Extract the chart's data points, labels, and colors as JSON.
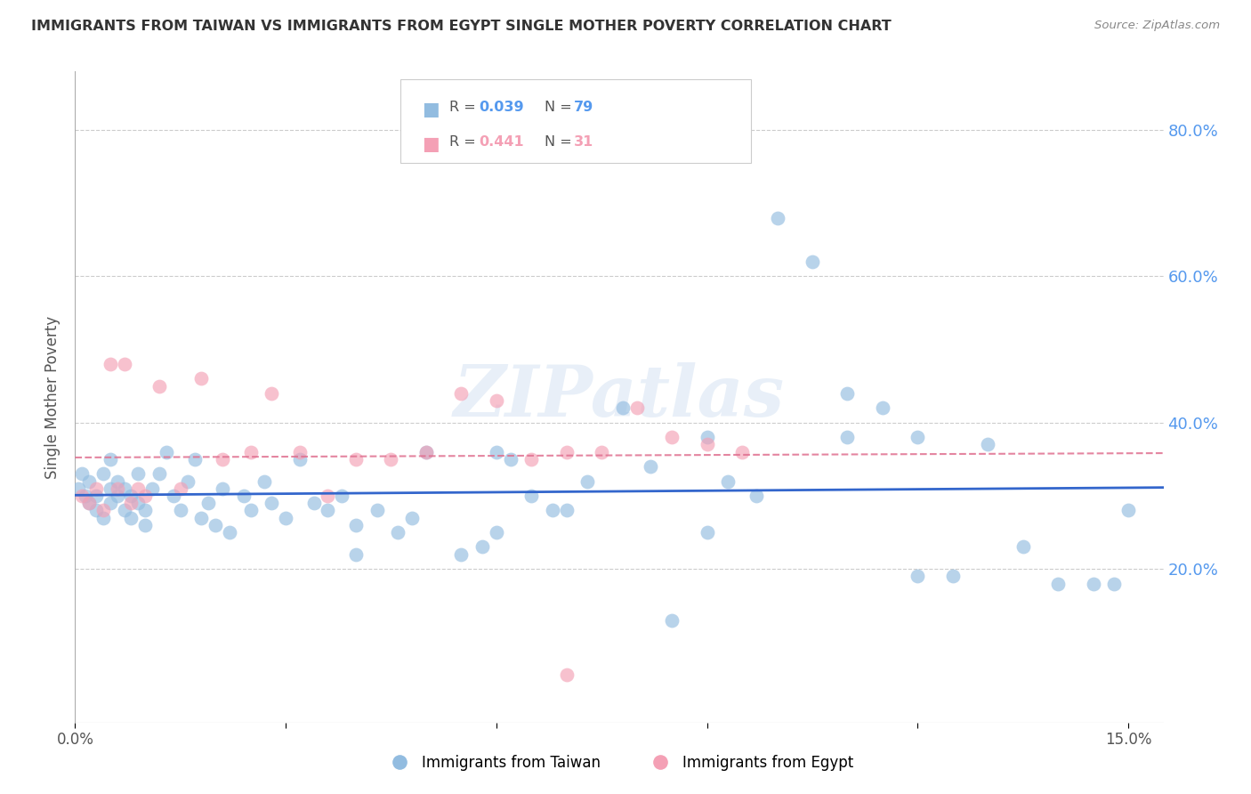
{
  "title": "IMMIGRANTS FROM TAIWAN VS IMMIGRANTS FROM EGYPT SINGLE MOTHER POVERTY CORRELATION CHART",
  "source": "Source: ZipAtlas.com",
  "ylabel": "Single Mother Poverty",
  "legend_taiwan": "Immigrants from Taiwan",
  "legend_egypt": "Immigrants from Egypt",
  "taiwan_R": "0.039",
  "taiwan_N": "79",
  "egypt_R": "0.441",
  "egypt_N": "31",
  "taiwan_color": "#92bce0",
  "egypt_color": "#f4a0b5",
  "trend_taiwan_color": "#3366cc",
  "trend_egypt_color": "#e07090",
  "background_color": "#ffffff",
  "grid_color": "#cccccc",
  "right_axis_color": "#5599ee",
  "title_color": "#333333",
  "watermark": "ZIPatlas",
  "xlim": [
    0.0,
    0.155
  ],
  "ylim": [
    -0.01,
    0.88
  ],
  "y_ticks_right": [
    0.2,
    0.4,
    0.6,
    0.8
  ],
  "y_tick_labels_right": [
    "20.0%",
    "40.0%",
    "60.0%",
    "80.0%"
  ],
  "taiwan_x": [
    0.0005,
    0.001,
    0.0015,
    0.002,
    0.002,
    0.003,
    0.003,
    0.004,
    0.004,
    0.005,
    0.005,
    0.005,
    0.006,
    0.006,
    0.007,
    0.007,
    0.008,
    0.008,
    0.009,
    0.009,
    0.01,
    0.01,
    0.011,
    0.012,
    0.013,
    0.014,
    0.015,
    0.016,
    0.017,
    0.018,
    0.019,
    0.02,
    0.021,
    0.022,
    0.024,
    0.025,
    0.027,
    0.028,
    0.03,
    0.032,
    0.034,
    0.036,
    0.038,
    0.04,
    0.043,
    0.046,
    0.048,
    0.05,
    0.055,
    0.058,
    0.06,
    0.062,
    0.065,
    0.068,
    0.07,
    0.073,
    0.078,
    0.082,
    0.085,
    0.09,
    0.093,
    0.097,
    0.1,
    0.105,
    0.11,
    0.115,
    0.12,
    0.125,
    0.13,
    0.135,
    0.14,
    0.145,
    0.148,
    0.15,
    0.12,
    0.11,
    0.09,
    0.04,
    0.06
  ],
  "taiwan_y": [
    0.31,
    0.33,
    0.3,
    0.29,
    0.32,
    0.3,
    0.28,
    0.33,
    0.27,
    0.31,
    0.29,
    0.35,
    0.3,
    0.32,
    0.28,
    0.31,
    0.3,
    0.27,
    0.33,
    0.29,
    0.28,
    0.26,
    0.31,
    0.33,
    0.36,
    0.3,
    0.28,
    0.32,
    0.35,
    0.27,
    0.29,
    0.26,
    0.31,
    0.25,
    0.3,
    0.28,
    0.32,
    0.29,
    0.27,
    0.35,
    0.29,
    0.28,
    0.3,
    0.26,
    0.28,
    0.25,
    0.27,
    0.36,
    0.22,
    0.23,
    0.36,
    0.35,
    0.3,
    0.28,
    0.28,
    0.32,
    0.42,
    0.34,
    0.13,
    0.25,
    0.32,
    0.3,
    0.68,
    0.62,
    0.38,
    0.42,
    0.19,
    0.19,
    0.37,
    0.23,
    0.18,
    0.18,
    0.18,
    0.28,
    0.38,
    0.44,
    0.38,
    0.22,
    0.25
  ],
  "egypt_x": [
    0.001,
    0.002,
    0.003,
    0.004,
    0.005,
    0.006,
    0.007,
    0.008,
    0.009,
    0.01,
    0.012,
    0.015,
    0.018,
    0.021,
    0.025,
    0.028,
    0.032,
    0.036,
    0.04,
    0.045,
    0.05,
    0.055,
    0.06,
    0.065,
    0.07,
    0.075,
    0.08,
    0.085,
    0.09,
    0.095,
    0.07
  ],
  "egypt_y": [
    0.3,
    0.29,
    0.31,
    0.28,
    0.48,
    0.31,
    0.48,
    0.29,
    0.31,
    0.3,
    0.45,
    0.31,
    0.46,
    0.35,
    0.36,
    0.44,
    0.36,
    0.3,
    0.35,
    0.35,
    0.36,
    0.44,
    0.43,
    0.35,
    0.36,
    0.36,
    0.42,
    0.38,
    0.37,
    0.36,
    0.055
  ]
}
